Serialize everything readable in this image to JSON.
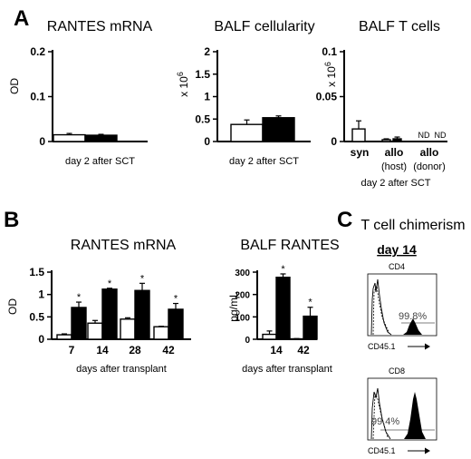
{
  "panel_labels": {
    "a": "A",
    "b": "B",
    "c": "C"
  },
  "chart_data": [
    {
      "id": "a1",
      "type": "bar",
      "title": "RANTES mRNA",
      "ylabel": "OD",
      "xlabel": "day 2 after SCT",
      "ylim": [
        0,
        0.2
      ],
      "yticks": [
        "0",
        "0.1",
        "0.2"
      ],
      "categories": [
        ""
      ],
      "series": [
        {
          "fill": "#ffffff",
          "values": [
            0.015
          ],
          "errors": [
            0.003
          ]
        },
        {
          "fill": "#000000",
          "values": [
            0.014
          ],
          "errors": [
            0.002
          ]
        }
      ]
    },
    {
      "id": "a2",
      "type": "bar",
      "title": "BALF cellularity",
      "ylabel": "x 10",
      "ylabel_exp": "6",
      "xlabel": "day 2 after SCT",
      "ylim": [
        0,
        2
      ],
      "yticks": [
        "0",
        "0.5",
        "1",
        "1.5",
        "2"
      ],
      "categories": [
        ""
      ],
      "series": [
        {
          "fill": "#ffffff",
          "values": [
            0.38
          ],
          "errors": [
            0.1
          ]
        },
        {
          "fill": "#000000",
          "values": [
            0.53
          ],
          "errors": [
            0.04
          ]
        }
      ]
    },
    {
      "id": "a3",
      "type": "bar",
      "title": "BALF T cells",
      "ylabel": "x 10",
      "ylabel_exp": "6",
      "xlabel": "day 2 after SCT",
      "ylim": [
        0,
        0.1
      ],
      "yticks": [
        "0",
        "0.05",
        "0.1"
      ],
      "categories": [
        "syn",
        "allo",
        "allo"
      ],
      "sublabels": [
        "",
        "(host)",
        "(donor)"
      ],
      "bars": [
        {
          "fill": "#ffffff",
          "value": 0.014,
          "error": 0.009
        },
        {
          "fill": "#ffffff",
          "value": 0.002,
          "error": 0.001
        },
        {
          "fill": "#000000",
          "value": 0.003,
          "error": 0.002
        }
      ],
      "annotations": [
        "ND",
        "ND"
      ]
    },
    {
      "id": "b1",
      "type": "bar",
      "title": "RANTES mRNA",
      "ylabel": "OD",
      "xlabel": "days after transplant",
      "ylim": [
        0,
        1.5
      ],
      "yticks": [
        "0",
        "0.5",
        "1",
        "1.5"
      ],
      "categories": [
        "7",
        "14",
        "28",
        "42"
      ],
      "series": [
        {
          "fill": "#ffffff",
          "values": [
            0.1,
            0.36,
            0.45,
            0.28
          ],
          "errors": [
            0.02,
            0.06,
            0.03,
            0.01
          ]
        },
        {
          "fill": "#000000",
          "values": [
            0.71,
            1.12,
            1.09,
            0.67
          ],
          "errors": [
            0.12,
            0.02,
            0.16,
            0.13
          ]
        }
      ],
      "significance": "*"
    },
    {
      "id": "b2",
      "type": "bar",
      "title": "BALF RANTES",
      "ylabel": "pg/mL",
      "xlabel": "days after transplant",
      "ylim": [
        0,
        300
      ],
      "yticks": [
        "0",
        "100",
        "200",
        "300"
      ],
      "categories": [
        "14",
        "42"
      ],
      "series": [
        {
          "fill": "#ffffff",
          "values": [
            22,
            2
          ],
          "errors": [
            15,
            1
          ]
        },
        {
          "fill": "#000000",
          "values": [
            277,
            103
          ],
          "errors": [
            15,
            40
          ]
        }
      ],
      "significance": "*"
    }
  ],
  "chimerism": {
    "title": "T cell chimerism",
    "day": "day 14",
    "plots": [
      {
        "marker": "CD4",
        "percent": "99.8%",
        "axis": "CD45.1"
      },
      {
        "marker": "CD8",
        "percent": "99.4%",
        "axis": "CD45.1"
      }
    ]
  }
}
